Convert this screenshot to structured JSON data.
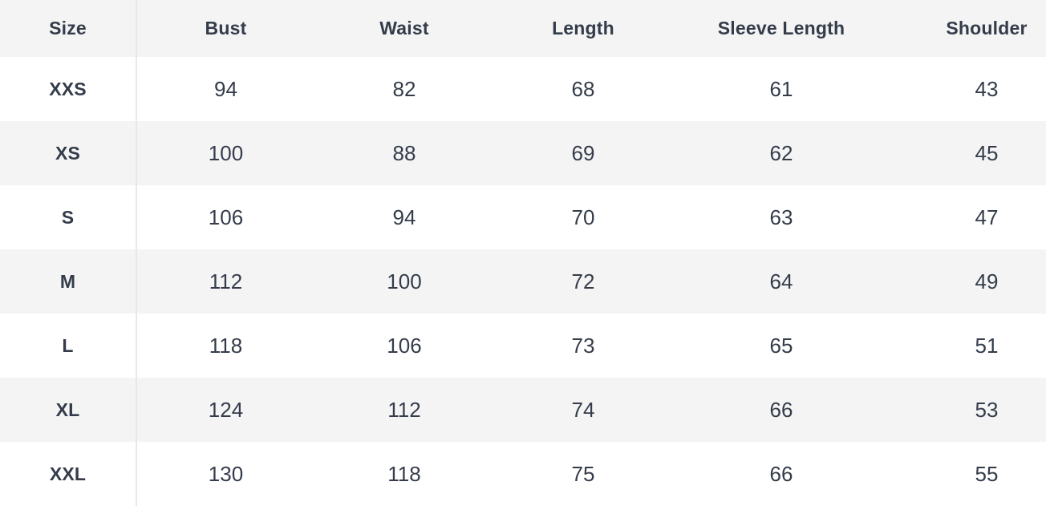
{
  "size_chart": {
    "columns": [
      "Size",
      "Bust",
      "Waist",
      "Length",
      "Sleeve Length",
      "Shoulder"
    ],
    "rows": [
      {
        "size": "XXS",
        "bust": "94",
        "waist": "82",
        "length": "68",
        "sleeve_length": "61",
        "shoulder": "43"
      },
      {
        "size": "XS",
        "bust": "100",
        "waist": "88",
        "length": "69",
        "sleeve_length": "62",
        "shoulder": "45"
      },
      {
        "size": "S",
        "bust": "106",
        "waist": "94",
        "length": "70",
        "sleeve_length": "63",
        "shoulder": "47"
      },
      {
        "size": "M",
        "bust": "112",
        "waist": "100",
        "length": "72",
        "sleeve_length": "64",
        "shoulder": "49"
      },
      {
        "size": "L",
        "bust": "118",
        "waist": "106",
        "length": "73",
        "sleeve_length": "65",
        "shoulder": "51"
      },
      {
        "size": "XL",
        "bust": "124",
        "waist": "112",
        "length": "74",
        "sleeve_length": "66",
        "shoulder": "53"
      },
      {
        "size": "XXL",
        "bust": "130",
        "waist": "118",
        "length": "75",
        "sleeve_length": "66",
        "shoulder": "55"
      }
    ]
  },
  "colors": {
    "text": "#343c4a",
    "row_bg": "#ffffff",
    "row_alt_bg": "#f4f4f5",
    "divider": "#e8e8e9"
  }
}
